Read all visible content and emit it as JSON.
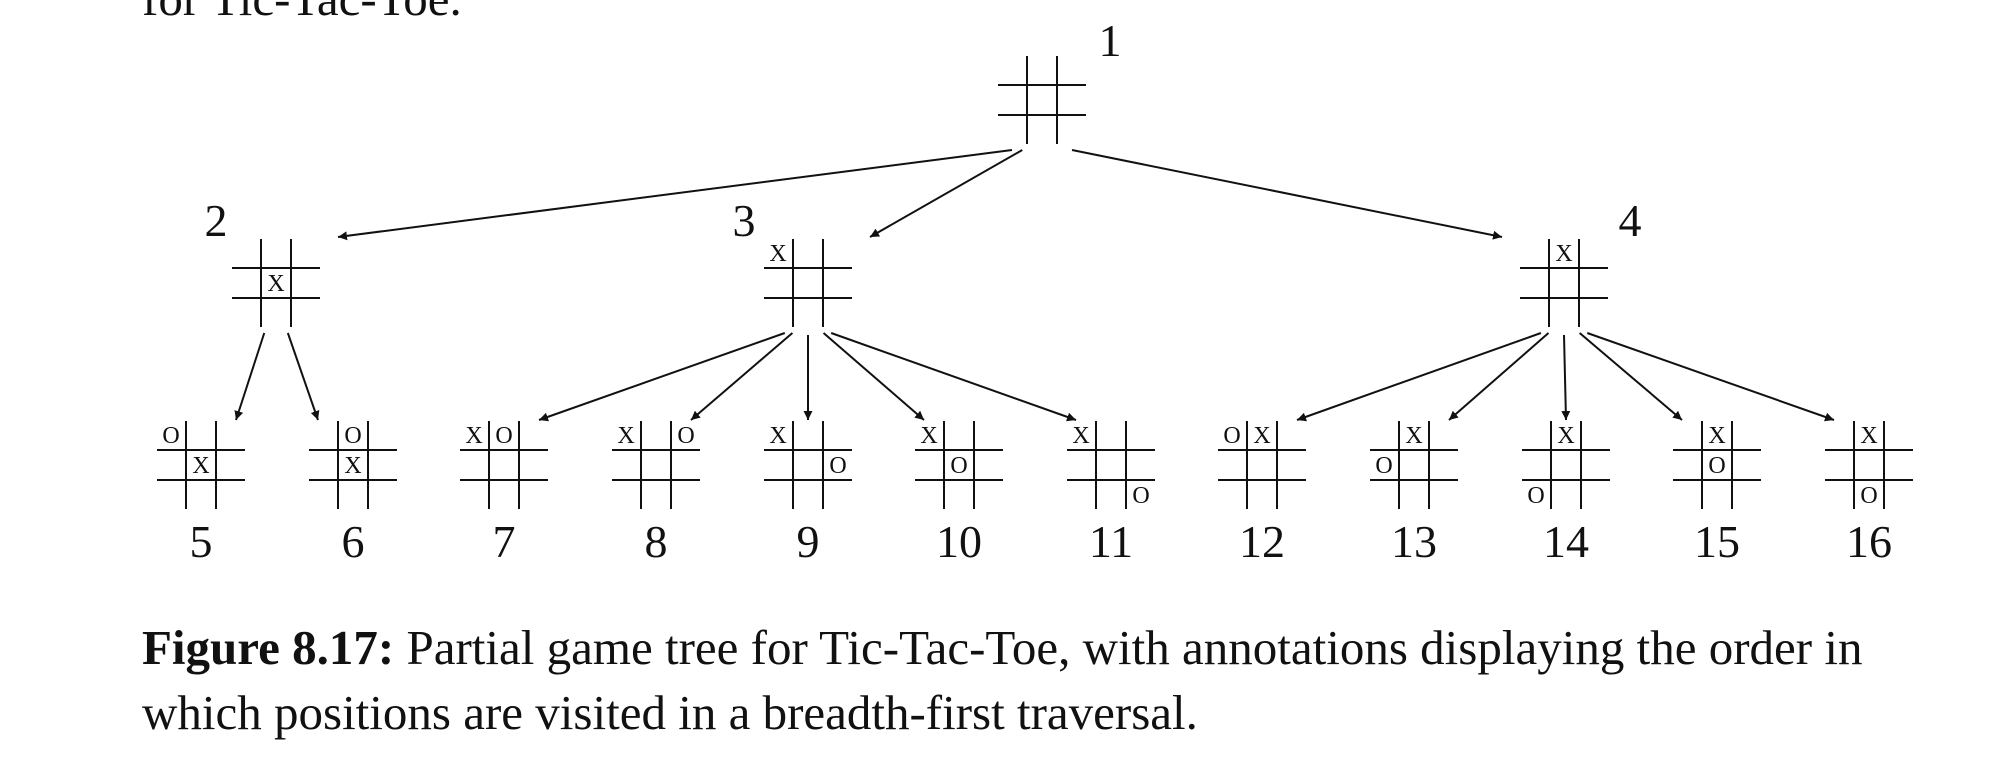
{
  "header_fragment": "for Tic-Tac-Toe.",
  "caption": {
    "label": "Figure 8.17:",
    "text": "Partial game tree for Tic-Tac-Toe, with annotations displaying the order in which positions are visited in a breadth-first traversal."
  },
  "nodes": [
    {
      "id": 1,
      "label": "1",
      "board": [
        "",
        "",
        "",
        "",
        "",
        "",
        "",
        "",
        ""
      ]
    },
    {
      "id": 2,
      "label": "2",
      "board": [
        "",
        "",
        "",
        "",
        "X",
        "",
        "",
        "",
        ""
      ]
    },
    {
      "id": 3,
      "label": "3",
      "board": [
        "X",
        "",
        "",
        "",
        "",
        "",
        "",
        "",
        ""
      ]
    },
    {
      "id": 4,
      "label": "4",
      "board": [
        "",
        "X",
        "",
        "",
        "",
        "",
        "",
        "",
        ""
      ]
    },
    {
      "id": 5,
      "label": "5",
      "board": [
        "O",
        "",
        "",
        "",
        "X",
        "",
        "",
        "",
        ""
      ]
    },
    {
      "id": 6,
      "label": "6",
      "board": [
        "",
        "O",
        "",
        "",
        "X",
        "",
        "",
        "",
        ""
      ]
    },
    {
      "id": 7,
      "label": "7",
      "board": [
        "X",
        "O",
        "",
        "",
        "",
        "",
        "",
        "",
        ""
      ]
    },
    {
      "id": 8,
      "label": "8",
      "board": [
        "X",
        "",
        "O",
        "",
        "",
        "",
        "",
        "",
        ""
      ]
    },
    {
      "id": 9,
      "label": "9",
      "board": [
        "X",
        "",
        "",
        "",
        "",
        "O",
        "",
        "",
        ""
      ]
    },
    {
      "id": 10,
      "label": "10",
      "board": [
        "X",
        "",
        "",
        "",
        "O",
        "",
        "",
        "",
        ""
      ]
    },
    {
      "id": 11,
      "label": "11",
      "board": [
        "X",
        "",
        "",
        "",
        "",
        "",
        "",
        "",
        "O"
      ]
    },
    {
      "id": 12,
      "label": "12",
      "board": [
        "O",
        "X",
        "",
        "",
        "",
        "",
        "",
        "",
        ""
      ]
    },
    {
      "id": 13,
      "label": "13",
      "board": [
        "",
        "X",
        "",
        "O",
        "",
        "",
        "",
        "",
        ""
      ]
    },
    {
      "id": 14,
      "label": "14",
      "board": [
        "",
        "X",
        "",
        "",
        "",
        "",
        "O",
        "",
        ""
      ]
    },
    {
      "id": 15,
      "label": "15",
      "board": [
        "",
        "X",
        "",
        "",
        "O",
        "",
        "",
        "",
        ""
      ]
    },
    {
      "id": 16,
      "label": "16",
      "board": [
        "",
        "X",
        "",
        "",
        "",
        "",
        "",
        "O",
        ""
      ]
    }
  ],
  "edges": [
    [
      1,
      2
    ],
    [
      1,
      3
    ],
    [
      1,
      4
    ],
    [
      2,
      5
    ],
    [
      2,
      6
    ],
    [
      3,
      7
    ],
    [
      3,
      8
    ],
    [
      3,
      9
    ],
    [
      3,
      10
    ],
    [
      3,
      11
    ],
    [
      4,
      12
    ],
    [
      4,
      13
    ],
    [
      4,
      14
    ],
    [
      4,
      15
    ],
    [
      4,
      16
    ]
  ]
}
